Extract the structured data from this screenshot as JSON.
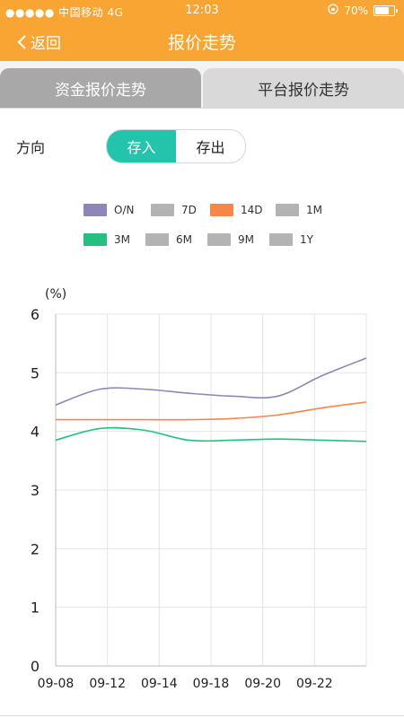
{
  "status": {
    "carrier": "●●●●● 中国移动   4G",
    "time": "12:03",
    "battery": "70%"
  },
  "nav": {
    "back_label": "返回",
    "title": "报价走势"
  },
  "tabs": [
    {
      "label": "资金报价走势"
    },
    {
      "label": "平台报价走势"
    }
  ],
  "direction": {
    "label": "方向",
    "options": [
      "存入",
      "存出"
    ],
    "selected": "存入"
  },
  "colors": {
    "accent": "#f8a533",
    "toggle_on": "#23c4ab"
  },
  "chart_data": {
    "type": "line",
    "ylabel": "(%)",
    "ylim": [
      0,
      6
    ],
    "yticks": [
      "0",
      "1",
      "2",
      "3",
      "4",
      "5",
      "6"
    ],
    "x_tick_labels": [
      "09-08",
      "09-12",
      "09-14",
      "09-18",
      "09-20",
      "09-22"
    ],
    "grid": true,
    "legend_position": "top",
    "legend": [
      {
        "name": "O/N",
        "color": "#8e86b8"
      },
      {
        "name": "7D",
        "color": "#b3b3b3"
      },
      {
        "name": "14D",
        "color": "#f7864a"
      },
      {
        "name": "1M",
        "color": "#b3b3b3"
      },
      {
        "name": "3M",
        "color": "#25c07f"
      },
      {
        "name": "6M",
        "color": "#b3b3b3"
      },
      {
        "name": "9M",
        "color": "#b3b3b3"
      },
      {
        "name": "1Y",
        "color": "#b3b3b3"
      }
    ],
    "x_index": [
      0,
      1,
      2,
      3,
      4,
      5,
      6,
      7
    ],
    "series": [
      {
        "name": "O/N",
        "color": "#8e86b8",
        "values": [
          4.45,
          4.72,
          4.72,
          4.65,
          4.6,
          4.6,
          4.95,
          5.25
        ]
      },
      {
        "name": "14D",
        "color": "#f7864a",
        "values": [
          4.2,
          4.2,
          4.2,
          4.2,
          4.22,
          4.28,
          4.4,
          4.5
        ]
      },
      {
        "name": "3M",
        "color": "#25c07f",
        "values": [
          3.85,
          4.05,
          4.02,
          3.85,
          3.85,
          3.87,
          3.85,
          3.83
        ]
      }
    ]
  }
}
